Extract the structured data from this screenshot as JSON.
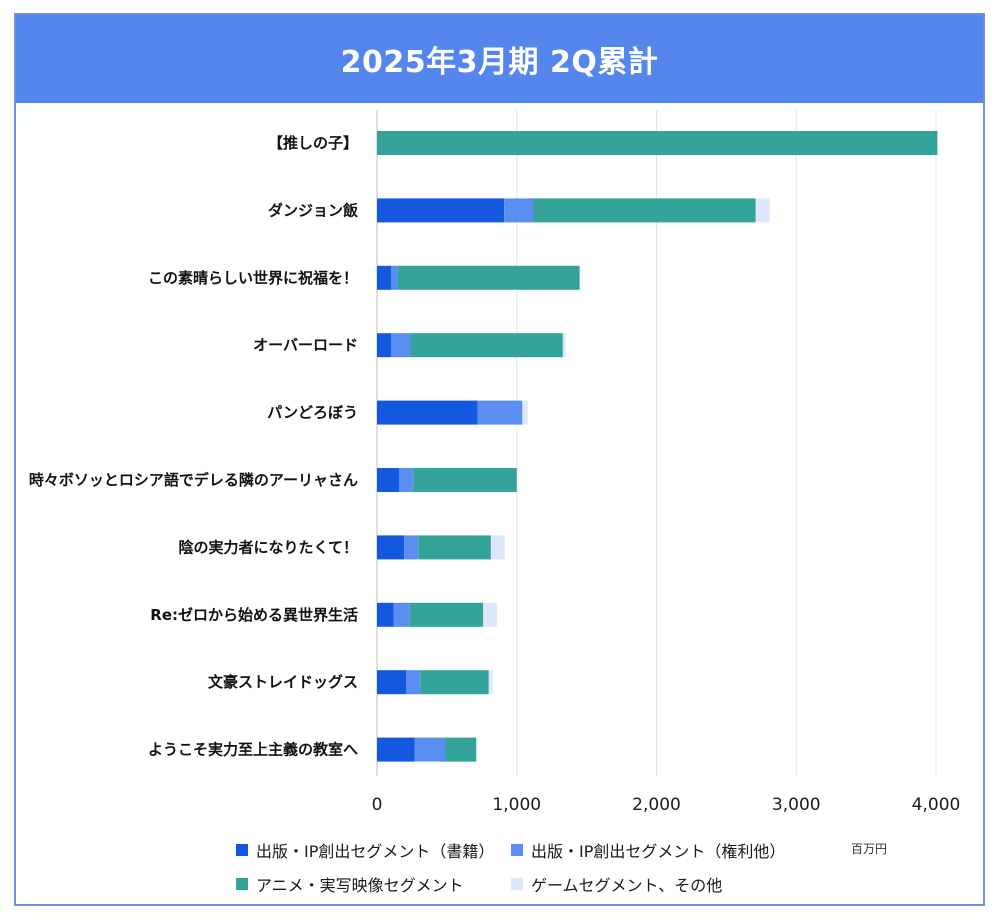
{
  "chart_data": {
    "type": "bar",
    "orientation": "horizontal",
    "stacked": true,
    "title": "2025年3月期  2Q累計",
    "unit": "百万円",
    "xlim": [
      0,
      4000
    ],
    "xticks": [
      0,
      1000,
      2000,
      3000,
      4000
    ],
    "xtick_labels": [
      "0",
      "1,000",
      "2,000",
      "3,000",
      "4,000"
    ],
    "grid": true,
    "legend_position": "bottom",
    "categories": [
      "【推しの子】",
      "ダンジョン飯",
      "この素晴らしい世界に祝福を！",
      "オーバーロード",
      "パンどろぼう",
      "時々ボソッとロシア語でデレる隣のアーリャさん",
      "陰の実力者になりたくて！",
      "Re:ゼロから始める異世界生活",
      "文豪ストレイドッグス",
      "ようこそ実力至上主義の教室へ"
    ],
    "series": [
      {
        "name": "出版・IP創出セグメント（書籍）",
        "color": "#1558e0",
        "values": [
          0,
          910,
          100,
          100,
          720,
          160,
          195,
          120,
          210,
          270
        ]
      },
      {
        "name": "出版・IP創出セグメント（権利他）",
        "color": "#5a8ef0",
        "values": [
          0,
          210,
          50,
          140,
          320,
          100,
          100,
          115,
          100,
          220
        ]
      },
      {
        "name": "アニメ・実写映像セグメント",
        "color": "#34a39a",
        "values": [
          4010,
          1590,
          1300,
          1090,
          0,
          740,
          520,
          525,
          490,
          220
        ]
      },
      {
        "name": "ゲームセグメント、その他",
        "color": "#dfe7fb",
        "values": [
          0,
          100,
          0,
          20,
          40,
          0,
          100,
          100,
          30,
          10
        ]
      }
    ]
  }
}
